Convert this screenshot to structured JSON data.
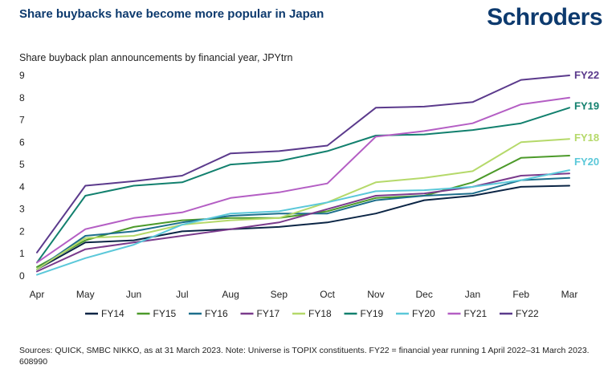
{
  "header": {
    "title": "Share buybacks have become more popular in Japan",
    "logo": "Schroders"
  },
  "chart_data": {
    "type": "line",
    "title": "Share buybacks have become more popular in Japan",
    "subtitle": "Share buyback plan announcements by financial year, JPYtrn",
    "xlabel": "",
    "ylabel": "JPYtrn",
    "ylim": [
      0,
      9
    ],
    "yticks": [
      0,
      1,
      2,
      3,
      4,
      5,
      6,
      7,
      8,
      9
    ],
    "grid": false,
    "legend_position": "bottom",
    "categories": [
      "Apr",
      "May",
      "Jun",
      "Jul",
      "Aug",
      "Sep",
      "Oct",
      "Nov",
      "Dec",
      "Jan",
      "Feb",
      "Mar"
    ],
    "series": [
      {
        "name": "FY14",
        "color": "#0b2545",
        "values": [
          0.3,
          1.5,
          1.6,
          2.0,
          2.1,
          2.2,
          2.4,
          2.8,
          3.4,
          3.6,
          4.0,
          4.05
        ]
      },
      {
        "name": "FY15",
        "color": "#4c9a2a",
        "values": [
          0.4,
          1.6,
          2.2,
          2.5,
          2.6,
          2.6,
          2.9,
          3.5,
          3.6,
          4.2,
          5.3,
          5.4
        ]
      },
      {
        "name": "FY16",
        "color": "#1d6e8c",
        "values": [
          0.3,
          1.8,
          2.0,
          2.4,
          2.7,
          2.8,
          2.8,
          3.4,
          3.6,
          3.7,
          4.3,
          4.4
        ]
      },
      {
        "name": "FY17",
        "color": "#7a3b8c",
        "values": [
          0.2,
          1.2,
          1.5,
          1.8,
          2.1,
          2.4,
          3.0,
          3.6,
          3.7,
          4.0,
          4.5,
          4.6
        ]
      },
      {
        "name": "FY18",
        "color": "#b5d96a",
        "values": [
          0.3,
          1.7,
          1.8,
          2.3,
          2.5,
          2.6,
          3.3,
          4.2,
          4.4,
          4.7,
          6.0,
          6.15
        ]
      },
      {
        "name": "FY19",
        "color": "#12806e",
        "values": [
          0.6,
          3.6,
          4.05,
          4.2,
          5.0,
          5.15,
          5.6,
          6.3,
          6.35,
          6.55,
          6.85,
          7.55
        ]
      },
      {
        "name": "FY20",
        "color": "#5bc8d9",
        "values": [
          0.05,
          0.8,
          1.4,
          2.3,
          2.8,
          2.9,
          3.3,
          3.8,
          3.85,
          4.0,
          4.3,
          4.75
        ]
      },
      {
        "name": "FY21",
        "color": "#b45ec4",
        "values": [
          0.6,
          2.1,
          2.6,
          2.85,
          3.5,
          3.75,
          4.15,
          6.25,
          6.5,
          6.85,
          7.7,
          8.0
        ]
      },
      {
        "name": "FY22",
        "color": "#5b3a8c",
        "values": [
          1.05,
          4.05,
          4.25,
          4.5,
          5.5,
          5.6,
          5.85,
          7.55,
          7.6,
          7.8,
          8.8,
          9.0
        ]
      }
    ],
    "end_labels": [
      {
        "name": "FY22",
        "color": "#5b3a8c"
      },
      {
        "name": "FY19",
        "color": "#12806e"
      },
      {
        "name": "FY18",
        "color": "#b5d96a"
      },
      {
        "name": "FY20",
        "color": "#5bc8d9"
      }
    ]
  },
  "footer": {
    "source": "Sources: QUICK, SMBC NIKKO, as at 31 March 2023. Note: Universe is TOPIX constituents. FY22 = financial year running 1 April 2022–31 March 2023. 608990"
  }
}
